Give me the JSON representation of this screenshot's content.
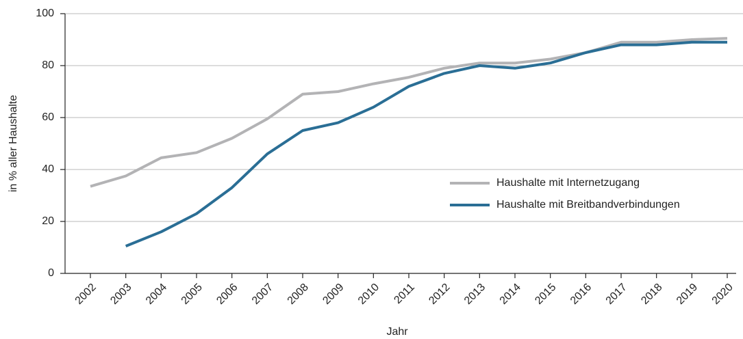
{
  "chart_data": {
    "type": "line",
    "categories": [
      "2002",
      "2003",
      "2004",
      "2005",
      "2006",
      "2007",
      "2008",
      "2009",
      "2010",
      "2011",
      "2012",
      "2013",
      "2014",
      "2015",
      "2016",
      "2017",
      "2018",
      "2019",
      "2020"
    ],
    "series": [
      {
        "name": "Haushalte mit Internetzugang",
        "color": "#b3b3b5",
        "values": [
          33.5,
          37.5,
          44.5,
          46.5,
          52,
          59.5,
          69,
          70,
          73,
          75.5,
          79,
          81,
          81,
          82.5,
          85,
          89,
          89,
          90,
          90.5
        ]
      },
      {
        "name": "Haushalte mit Breitbandverbindungen",
        "color": "#2a6e95",
        "values": [
          null,
          10.5,
          16,
          23,
          33,
          46,
          55,
          58,
          64,
          72,
          77,
          80,
          79,
          81,
          85,
          88,
          88,
          89,
          89
        ]
      }
    ],
    "xlabel": "Jahr",
    "ylabel": "in % aller Haushalte",
    "ylim": [
      0,
      100
    ],
    "yticks": [
      0,
      20,
      40,
      60,
      80,
      100
    ],
    "grid": true,
    "legend": "lower right"
  }
}
